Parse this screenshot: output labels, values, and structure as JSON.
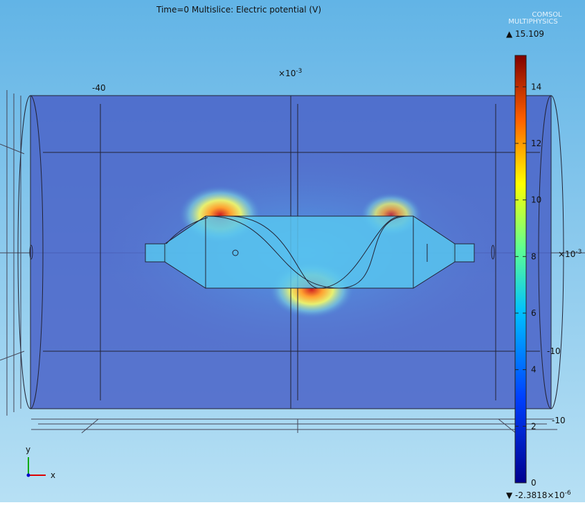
{
  "header": {
    "title": "Time=0   Multislice: Electric potential (V)",
    "logo": [
      "COMSOL",
      "MULTIPHYSICS"
    ]
  },
  "axes": {
    "x_label": "-40",
    "x_scale": {
      "base": "×10",
      "exponent": "-3"
    },
    "y_scale": {
      "base": "×10",
      "exponent": "-3"
    },
    "z_label_1": "-10",
    "z_label_2": "-10"
  },
  "colorbar": {
    "max": 15.109,
    "min": {
      "base": "-2.3818×10",
      "exponent": "-6"
    },
    "range": [
      0,
      15.109
    ],
    "ticks": [
      0,
      2,
      4,
      6,
      8,
      10,
      12,
      14
    ]
  },
  "triad": {
    "y": "y",
    "x": "x"
  }
}
